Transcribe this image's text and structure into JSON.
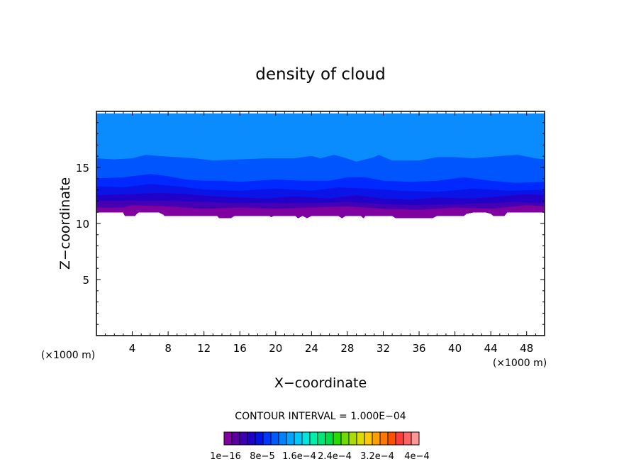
{
  "chart_data": {
    "type": "contour",
    "title": "density of cloud",
    "xlabel": "X−coordinate",
    "ylabel": "Z−coordinate",
    "x_unit": "(×1000 m)",
    "z_unit": "(×1000 m)",
    "xlim": [
      0,
      50
    ],
    "ylim": [
      0,
      20
    ],
    "x_ticks": [
      4,
      8,
      12,
      16,
      20,
      24,
      28,
      32,
      36,
      40,
      44,
      48
    ],
    "x_tick_labels": [
      "4",
      "8",
      "12",
      "16",
      "20",
      "24",
      "28",
      "32",
      "36",
      "40",
      "44",
      "48"
    ],
    "y_ticks": [
      5,
      10,
      15
    ],
    "y_tick_labels": [
      "5",
      "10",
      "15"
    ],
    "contour_interval_text": "CONTOUR INTERVAL = 1.000E−04",
    "colorbar": {
      "colors": [
        "#8000a0",
        "#5a00a0",
        "#3c00b4",
        "#1e00c8",
        "#0014e6",
        "#0037ff",
        "#005aff",
        "#0082ff",
        "#00a5ff",
        "#00c8ff",
        "#00e6dc",
        "#00f0aa",
        "#00e678",
        "#00dc46",
        "#28dc00",
        "#6edc00",
        "#aadc00",
        "#dcdc00",
        "#ffc800",
        "#ffa000",
        "#ff7800",
        "#ff5000",
        "#ff3c3c",
        "#ff6464",
        "#ff9696"
      ],
      "tick_labels": [
        "1e−16",
        "8e−5",
        "1.6e−4",
        "2.4e−4",
        "3.2e−4",
        "4e−4"
      ]
    },
    "bands": [
      {
        "color": "#0a8cff",
        "profile": [
          [
            0,
            19.8
          ],
          [
            50,
            19.8
          ]
        ]
      },
      {
        "color": "#0055ff",
        "profile": [
          [
            0,
            15.8
          ],
          [
            2,
            15.7
          ],
          [
            4,
            15.8
          ],
          [
            5,
            16.0
          ],
          [
            5.5,
            16.1
          ],
          [
            7,
            16.0
          ],
          [
            9,
            15.9
          ],
          [
            11,
            15.8
          ],
          [
            13,
            15.6
          ],
          [
            16,
            15.7
          ],
          [
            19,
            15.8
          ],
          [
            22,
            15.8
          ],
          [
            24,
            16.0
          ],
          [
            25,
            15.8
          ],
          [
            26.5,
            16.1
          ],
          [
            27.5,
            15.9
          ],
          [
            29,
            15.5
          ],
          [
            31,
            15.9
          ],
          [
            31.5,
            16.1
          ],
          [
            33,
            15.6
          ],
          [
            36,
            15.6
          ],
          [
            38,
            15.9
          ],
          [
            40,
            15.9
          ],
          [
            42,
            15.8
          ],
          [
            45,
            16.0
          ],
          [
            47,
            16.1
          ],
          [
            49,
            15.8
          ],
          [
            50,
            15.7
          ]
        ]
      },
      {
        "color": "#0028ff",
        "profile": [
          [
            0,
            14.0
          ],
          [
            3,
            14.1
          ],
          [
            6,
            14.4
          ],
          [
            8,
            14.2
          ],
          [
            10,
            13.9
          ],
          [
            12,
            13.8
          ],
          [
            14,
            13.8
          ],
          [
            16,
            13.7
          ],
          [
            20,
            13.9
          ],
          [
            23,
            13.8
          ],
          [
            26,
            13.8
          ],
          [
            28,
            14.1
          ],
          [
            30,
            14.1
          ],
          [
            32,
            13.8
          ],
          [
            35,
            13.7
          ],
          [
            38,
            13.8
          ],
          [
            41,
            14.1
          ],
          [
            44,
            13.8
          ],
          [
            47,
            13.6
          ],
          [
            50,
            13.7
          ]
        ]
      },
      {
        "color": "#0a14e6",
        "profile": [
          [
            0,
            13.3
          ],
          [
            3,
            13.2
          ],
          [
            6,
            13.5
          ],
          [
            9,
            13.3
          ],
          [
            12,
            13.0
          ],
          [
            16,
            12.9
          ],
          [
            20,
            13.1
          ],
          [
            24,
            12.9
          ],
          [
            27,
            13.2
          ],
          [
            30,
            13.1
          ],
          [
            34,
            12.9
          ],
          [
            38,
            12.8
          ],
          [
            42,
            13.1
          ],
          [
            46,
            12.9
          ],
          [
            50,
            13.0
          ]
        ]
      },
      {
        "color": "#2300c8",
        "profile": [
          [
            0,
            12.5
          ],
          [
            4,
            12.6
          ],
          [
            7,
            12.7
          ],
          [
            10,
            12.6
          ],
          [
            13,
            12.4
          ],
          [
            16,
            12.3
          ],
          [
            19,
            12.2
          ],
          [
            22,
            12.4
          ],
          [
            26,
            12.2
          ],
          [
            29,
            12.5
          ],
          [
            32,
            12.2
          ],
          [
            35,
            12.1
          ],
          [
            38,
            12.3
          ],
          [
            42,
            12.2
          ],
          [
            45,
            12.4
          ],
          [
            48,
            12.6
          ],
          [
            50,
            12.5
          ]
        ]
      },
      {
        "color": "#4600b4",
        "profile": [
          [
            0,
            12.0
          ],
          [
            4,
            12.0
          ],
          [
            8,
            12.0
          ],
          [
            12,
            11.9
          ],
          [
            16,
            11.8
          ],
          [
            20,
            11.8
          ],
          [
            24,
            11.8
          ],
          [
            28,
            11.9
          ],
          [
            32,
            11.7
          ],
          [
            36,
            11.6
          ],
          [
            40,
            11.7
          ],
          [
            44,
            11.8
          ],
          [
            47,
            11.9
          ],
          [
            50,
            11.8
          ]
        ]
      },
      {
        "color": "#8000a0",
        "profile": [
          [
            0,
            11.4
          ],
          [
            3,
            11.4
          ],
          [
            4,
            11.6
          ],
          [
            8,
            11.5
          ],
          [
            12,
            11.3
          ],
          [
            16,
            11.4
          ],
          [
            20,
            11.3
          ],
          [
            24,
            11.4
          ],
          [
            28,
            11.5
          ],
          [
            32,
            11.3
          ],
          [
            36,
            11.2
          ],
          [
            40,
            11.4
          ],
          [
            44,
            11.3
          ],
          [
            48,
            11.6
          ],
          [
            50,
            11.5
          ]
        ]
      }
    ],
    "cloud_base": [
      [
        0,
        11.0
      ],
      [
        3,
        11.0
      ],
      [
        3.2,
        10.7
      ],
      [
        4.3,
        10.7
      ],
      [
        4.5,
        10.9
      ],
      [
        4.7,
        11.0
      ],
      [
        7,
        11.0
      ],
      [
        7.5,
        10.8
      ],
      [
        7.6,
        10.7
      ],
      [
        13.5,
        10.7
      ],
      [
        13.7,
        10.5
      ],
      [
        15,
        10.5
      ],
      [
        15.4,
        10.7
      ],
      [
        19.3,
        10.7
      ],
      [
        19.5,
        10.6
      ],
      [
        19.8,
        10.7
      ],
      [
        22.2,
        10.7
      ],
      [
        22.5,
        10.5
      ],
      [
        23,
        10.7
      ],
      [
        23.5,
        10.5
      ],
      [
        24,
        10.7
      ],
      [
        27,
        10.7
      ],
      [
        27.4,
        10.5
      ],
      [
        27.8,
        10.7
      ],
      [
        29.5,
        10.7
      ],
      [
        29.8,
        10.5
      ],
      [
        30,
        10.7
      ],
      [
        33,
        10.7
      ],
      [
        33.4,
        10.5
      ],
      [
        37.5,
        10.5
      ],
      [
        38,
        10.7
      ],
      [
        41,
        10.7
      ],
      [
        41.3,
        10.9
      ],
      [
        42,
        11.0
      ],
      [
        43.5,
        11.0
      ],
      [
        44,
        10.9
      ],
      [
        44.3,
        10.7
      ],
      [
        45.5,
        10.7
      ],
      [
        45.8,
        11.0
      ],
      [
        50,
        11.0
      ]
    ]
  }
}
